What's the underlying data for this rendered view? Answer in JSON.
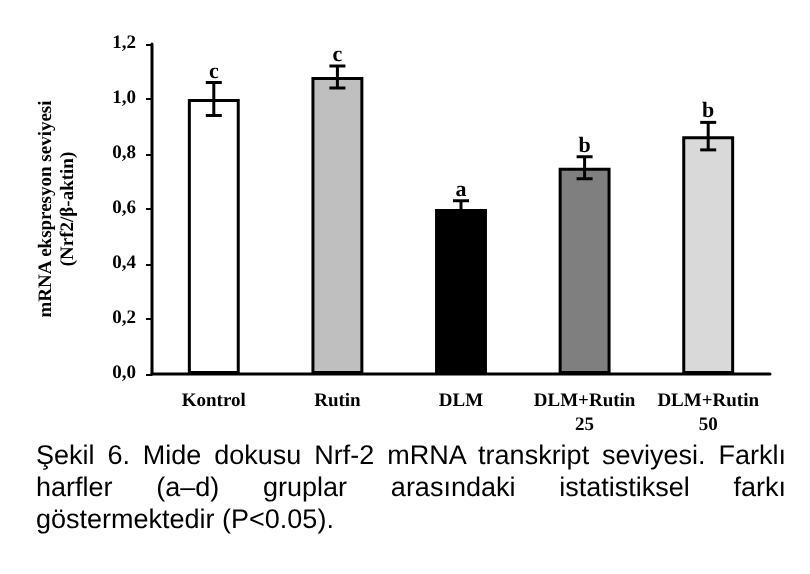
{
  "chart_data": {
    "type": "bar",
    "ylabel": "mRNA ekspresyon seviyesi\n(Nrf2/β-aktin)",
    "categories": [
      "Kontrol",
      "Rutin",
      "DLM",
      "DLM+Rutin\n25",
      "DLM+Rutin\n50"
    ],
    "values": [
      1.0,
      1.08,
      0.6,
      0.75,
      0.865
    ],
    "errors": [
      0.06,
      0.04,
      0.03,
      0.04,
      0.05
    ],
    "colors": [
      "#ffffff",
      "#bfbfbf",
      "#000000",
      "#7f7f7f",
      "#d9d9d9"
    ],
    "ylim": [
      0,
      1.2
    ],
    "yticks": [
      {
        "value": 0,
        "label": "0,0"
      },
      {
        "value": 0.2,
        "label": "0,2"
      },
      {
        "value": 0.4,
        "label": "0,4"
      },
      {
        "value": 0.6,
        "label": "0,6"
      },
      {
        "value": 0.8,
        "label": "0,8"
      },
      {
        "value": 1.0,
        "label": "1,0"
      },
      {
        "value": 1.2,
        "label": "1,2"
      }
    ],
    "grid": false,
    "annotations": [
      {
        "text": "c",
        "x": "Kontrol",
        "y": 1.06
      },
      {
        "text": "c",
        "x": "Rutin",
        "y": 1.12
      },
      {
        "text": "a",
        "x": "DLM",
        "y": 0.63
      },
      {
        "text": "b",
        "x": "DLM+Rutin\n25",
        "y": 0.79
      },
      {
        "text": "b",
        "x": "DLM+Rutin\n50",
        "y": 0.915
      },
      "Şekil 6. Mide dokusu Nrf-2 mRNA transkript seviyesi. Farklı harfler (a–d) gruplar arasındaki istatistiksel farkı göstermektedir (P<0.05)."
    ]
  }
}
